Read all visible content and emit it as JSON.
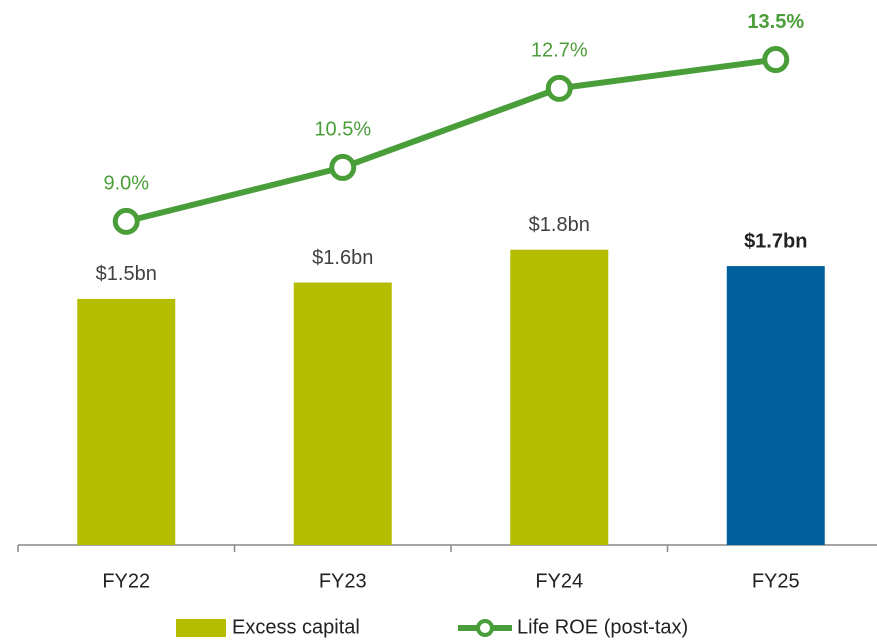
{
  "chart_data": {
    "type": "bar_line",
    "categories": [
      "FY22",
      "FY23",
      "FY24",
      "FY25"
    ],
    "series": [
      {
        "name": "Excess capital",
        "type": "bar",
        "color": "#b5bd00",
        "colors": [
          "#b5bd00",
          "#b5bd00",
          "#b5bd00",
          "#00609c"
        ],
        "values": [
          1.5,
          1.6,
          1.8,
          1.7
        ],
        "value_labels": [
          "$1.5bn",
          "$1.6bn",
          "$1.8bn",
          "$1.7bn"
        ]
      },
      {
        "name": "Life ROE (post-tax)",
        "type": "line",
        "axis": "y2",
        "color": "#4a9e3a",
        "values": [
          9.0,
          10.5,
          12.7,
          13.5
        ],
        "value_labels": [
          "9.0%",
          "10.5%",
          "12.7%",
          "13.5%"
        ]
      }
    ],
    "highlight_index": 3,
    "ylim": [
      0,
      3.2
    ],
    "y2lim": [
      0,
      14.6
    ],
    "legend": "bottom"
  }
}
